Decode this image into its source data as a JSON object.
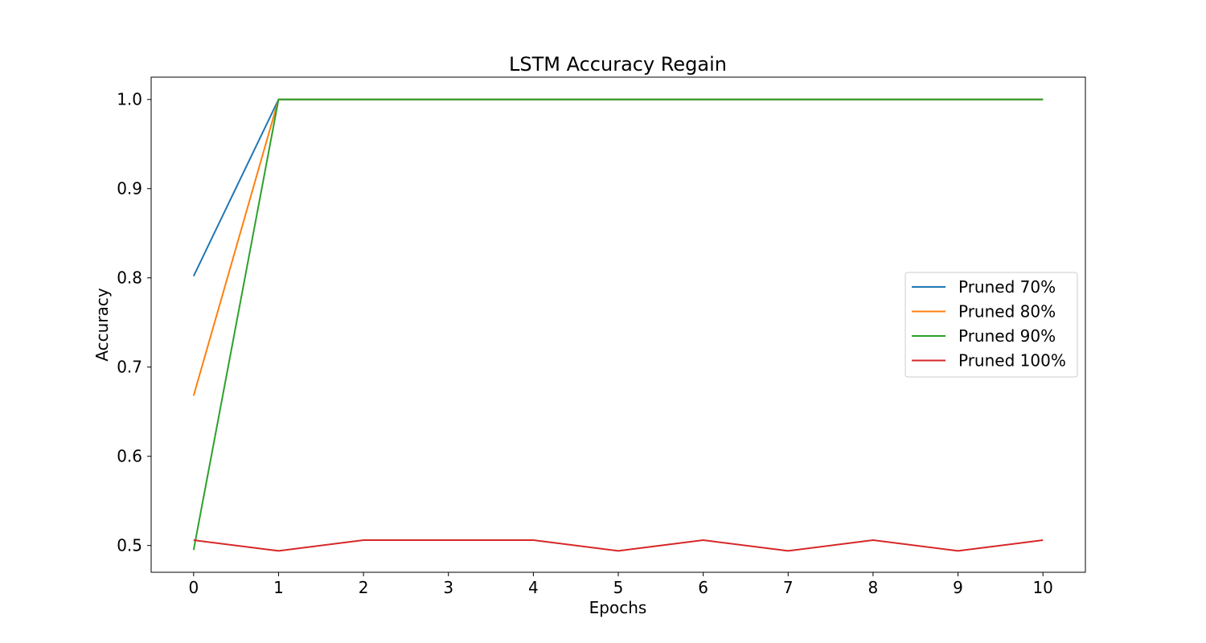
{
  "chart_data": {
    "type": "line",
    "title": "LSTM Accuracy Regain",
    "xlabel": "Epochs",
    "ylabel": "Accuracy",
    "x": [
      0,
      1,
      2,
      3,
      4,
      5,
      6,
      7,
      8,
      9,
      10
    ],
    "xlim": [
      -0.5,
      10.5
    ],
    "ylim": [
      0.47,
      1.025
    ],
    "xticks": [
      "0",
      "1",
      "2",
      "3",
      "4",
      "5",
      "6",
      "7",
      "8",
      "9",
      "10"
    ],
    "yticks": [
      "0.5",
      "0.6",
      "0.7",
      "0.8",
      "0.9",
      "1.0"
    ],
    "grid": false,
    "legend_position": "center-right",
    "series": [
      {
        "name": "Pruned 70%",
        "color": "#1f77b4",
        "values": [
          0.802,
          1.0,
          1.0,
          1.0,
          1.0,
          1.0,
          1.0,
          1.0,
          1.0,
          1.0,
          1.0
        ]
      },
      {
        "name": "Pruned 80%",
        "color": "#ff7f0e",
        "values": [
          0.668,
          1.0,
          1.0,
          1.0,
          1.0,
          1.0,
          1.0,
          1.0,
          1.0,
          1.0,
          1.0
        ]
      },
      {
        "name": "Pruned 90%",
        "color": "#2ca02c",
        "values": [
          0.495,
          1.0,
          1.0,
          1.0,
          1.0,
          1.0,
          1.0,
          1.0,
          1.0,
          1.0,
          1.0
        ]
      },
      {
        "name": "Pruned 100%",
        "color": "#d62728",
        "values": [
          0.506,
          0.494,
          0.506,
          0.506,
          0.506,
          0.494,
          0.506,
          0.494,
          0.506,
          0.494,
          0.506
        ]
      }
    ]
  }
}
